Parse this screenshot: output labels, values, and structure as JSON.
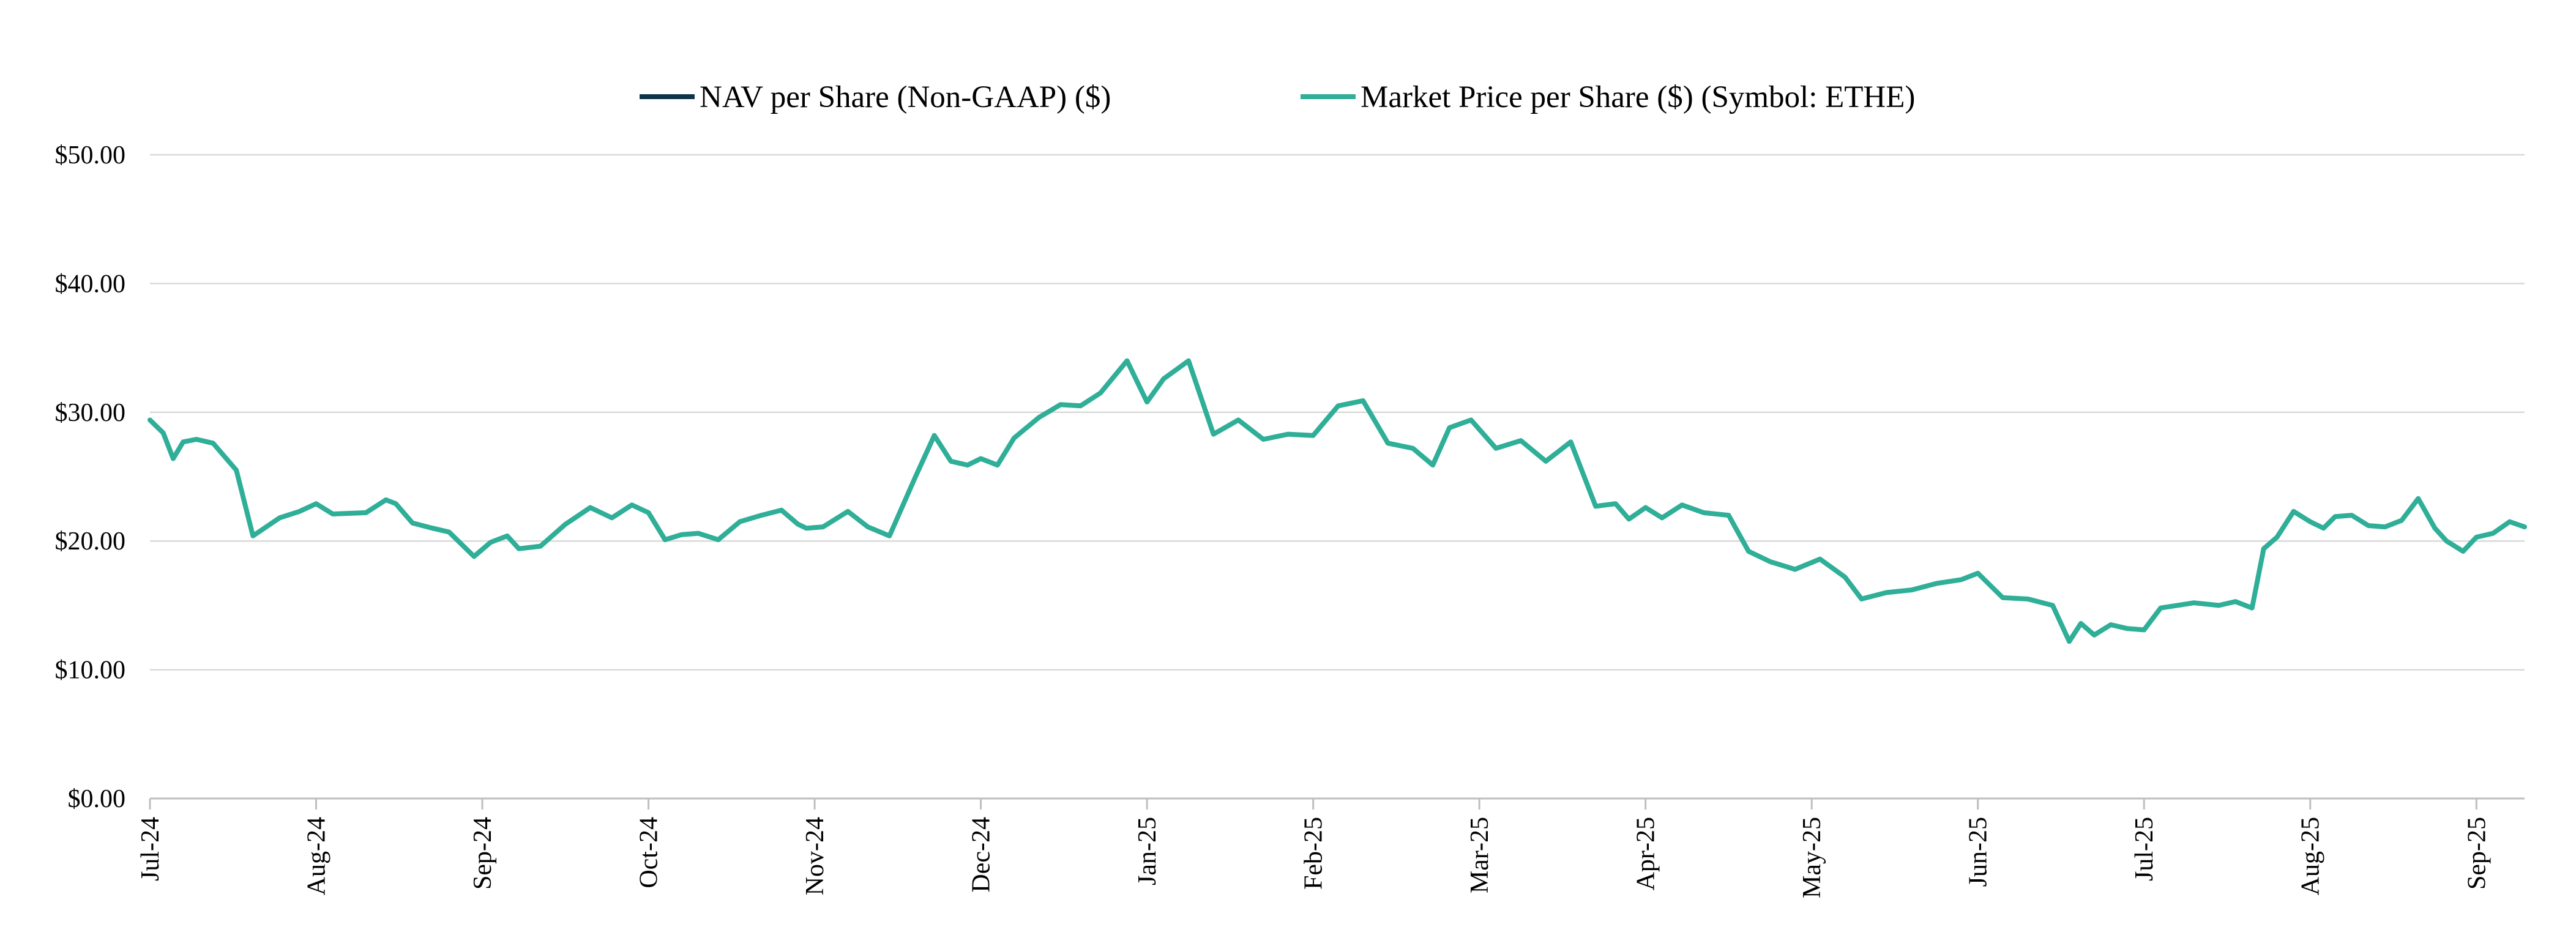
{
  "chart_data": {
    "type": "line",
    "title": "",
    "xlabel": "",
    "ylabel": "",
    "ylim": [
      0,
      50
    ],
    "y_ticks": [
      "$0.00",
      "$10.00",
      "$20.00",
      "$30.00",
      "$40.00",
      "$50.00"
    ],
    "y_tick_values": [
      0,
      10,
      20,
      30,
      40,
      50
    ],
    "x_ticks": [
      "Jul-24",
      "Aug-24",
      "Sep-24",
      "Oct-24",
      "Nov-24",
      "Dec-24",
      "Jan-25",
      "Feb-25",
      "Mar-25",
      "Apr-25",
      "May-25",
      "Jun-25",
      "Jul-25",
      "Aug-25",
      "Sep-25"
    ],
    "legend_position": "top-center",
    "grid": true,
    "colors": {
      "nav": "#0d3349",
      "market": "#2fae98",
      "grid": "#d9d9d9",
      "axis": "#bfbfbf"
    },
    "series": [
      {
        "name": "NAV per Share (Non-GAAP) ($)",
        "color": "#0d3349",
        "x": [],
        "values": []
      },
      {
        "name": "Market Price per Share ($) (Symbol: ETHE)",
        "color": "#2fae98",
        "x": [
          0,
          0.08,
          0.14,
          0.2,
          0.28,
          0.38,
          0.52,
          0.62,
          0.78,
          0.9,
          1.0,
          1.1,
          1.3,
          1.42,
          1.48,
          1.58,
          1.7,
          1.8,
          1.95,
          2.05,
          2.15,
          2.22,
          2.35,
          2.5,
          2.65,
          2.78,
          2.9,
          3.0,
          3.1,
          3.2,
          3.3,
          3.42,
          3.55,
          3.68,
          3.8,
          3.9,
          3.95,
          4.05,
          4.2,
          4.32,
          4.45,
          4.6,
          4.72,
          4.82,
          4.92,
          5.0,
          5.1,
          5.2,
          5.35,
          5.48,
          5.6,
          5.72,
          5.88,
          6.0,
          6.1,
          6.25,
          6.4,
          6.55,
          6.7,
          6.85,
          7.0,
          7.15,
          7.3,
          7.45,
          7.6,
          7.72,
          7.82,
          7.95,
          8.1,
          8.25,
          8.4,
          8.55,
          8.7,
          8.82,
          8.9,
          9.0,
          9.1,
          9.22,
          9.35,
          9.5,
          9.62,
          9.75,
          9.9,
          10.05,
          10.2,
          10.3,
          10.45,
          10.6,
          10.75,
          10.9,
          11.0,
          11.15,
          11.3,
          11.45,
          11.55,
          11.62,
          11.7,
          11.8,
          11.9,
          12.0,
          12.1,
          12.2,
          12.3,
          12.45,
          12.55,
          12.65,
          12.72,
          12.8,
          12.9,
          13.0,
          13.08,
          13.15,
          13.25,
          13.35,
          13.45,
          13.55,
          13.65,
          13.75,
          13.82,
          13.92,
          14.0,
          14.1,
          14.2,
          14.29
        ],
        "values": [
          29.4,
          28.4,
          26.4,
          27.7,
          27.9,
          27.6,
          25.5,
          20.4,
          21.8,
          22.3,
          22.9,
          22.1,
          22.2,
          23.2,
          22.9,
          21.4,
          21.0,
          20.7,
          18.8,
          19.9,
          20.4,
          19.4,
          19.6,
          21.3,
          22.6,
          21.8,
          22.8,
          22.2,
          20.1,
          20.5,
          20.6,
          20.1,
          21.5,
          22.0,
          22.4,
          21.3,
          21.0,
          21.1,
          22.3,
          21.1,
          20.4,
          24.8,
          28.2,
          26.2,
          25.9,
          26.4,
          25.9,
          28.0,
          29.6,
          30.6,
          30.5,
          31.5,
          34.0,
          30.8,
          32.6,
          34.0,
          28.3,
          29.4,
          27.9,
          28.3,
          28.2,
          30.5,
          30.9,
          27.6,
          27.2,
          25.9,
          28.8,
          29.4,
          27.2,
          27.8,
          26.2,
          27.7,
          22.7,
          22.9,
          21.7,
          22.6,
          21.8,
          22.8,
          22.2,
          22.0,
          19.2,
          18.4,
          17.8,
          18.6,
          17.2,
          15.5,
          16.0,
          16.2,
          16.7,
          17.0,
          17.5,
          15.6,
          15.5,
          15.0,
          12.2,
          13.6,
          12.7,
          13.5,
          13.2,
          13.1,
          14.8,
          15.0,
          15.2,
          15.0,
          15.3,
          14.8,
          19.4,
          20.3,
          22.3,
          21.5,
          21.0,
          21.9,
          22.0,
          21.2,
          21.1,
          21.6,
          23.3,
          21.0,
          20.0,
          19.2,
          20.3,
          20.6,
          21.5,
          21.1
        ]
      }
    ]
  },
  "legend": {
    "nav_label": "NAV per Share (Non-GAAP) ($)",
    "market_label": "Market Price per Share ($) (Symbol: ETHE)"
  }
}
